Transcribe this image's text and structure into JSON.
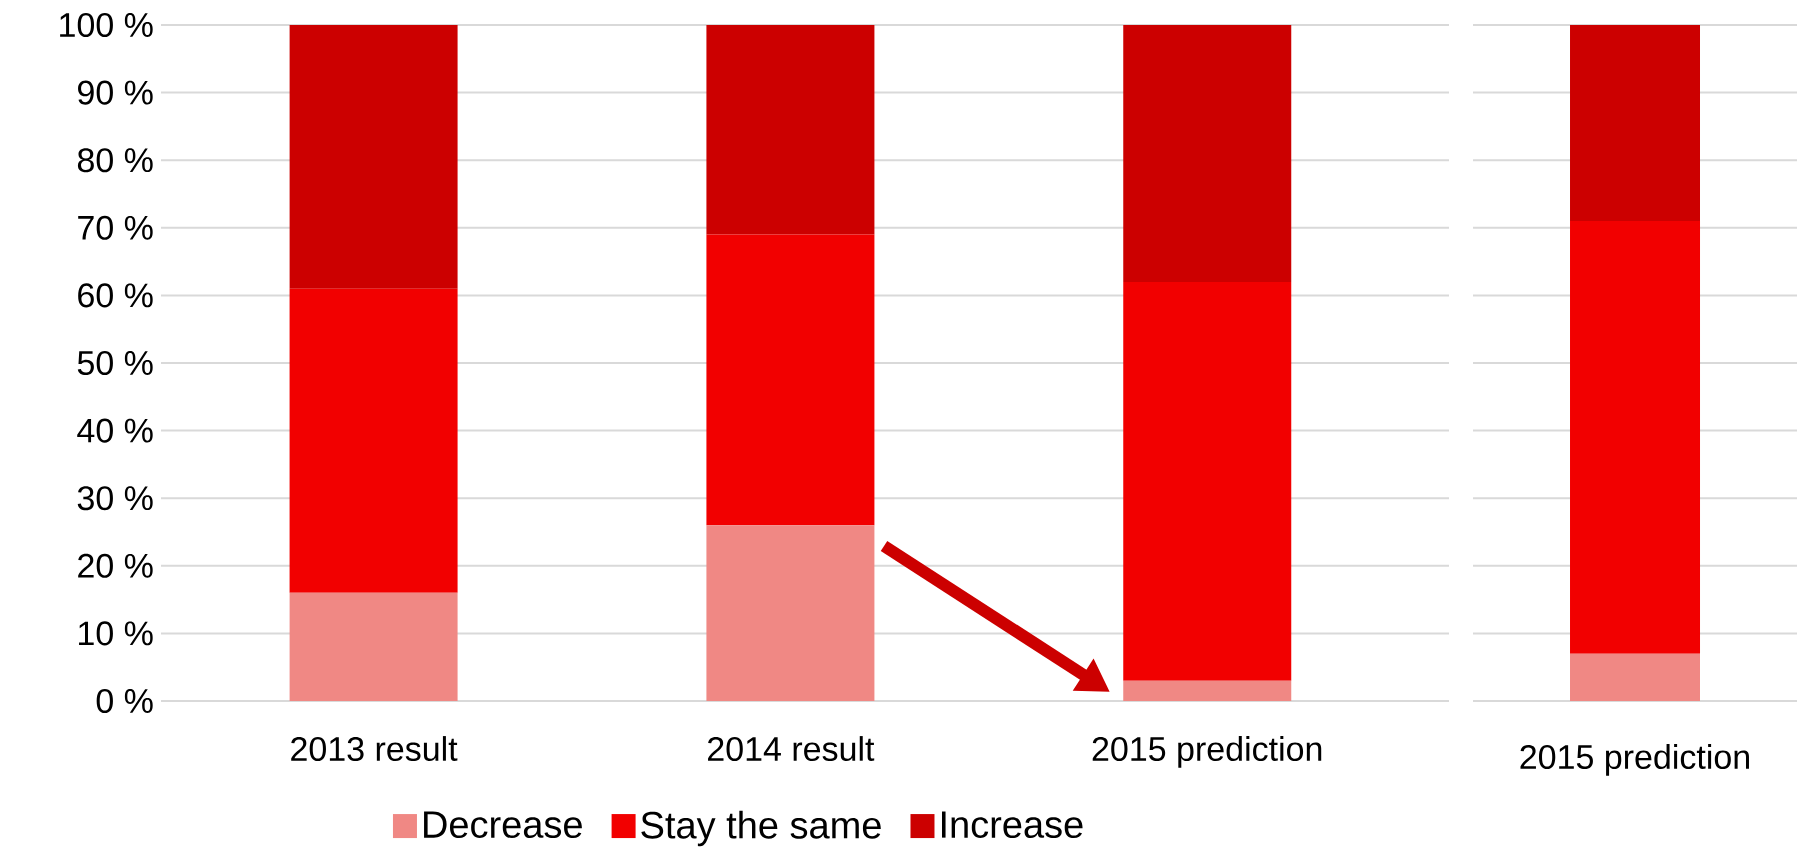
{
  "chart_data": [
    {
      "type": "bar",
      "stacked": true,
      "categories": [
        "2013 result",
        "2014 result",
        "2015 prediction"
      ],
      "series": [
        {
          "name": "Decrease",
          "color": "#f08884",
          "values": [
            16,
            26,
            3
          ]
        },
        {
          "name": "Stay the same",
          "color": "#f20000",
          "values": [
            45,
            43,
            59
          ]
        },
        {
          "name": "Increase",
          "color": "#cc0000",
          "values": [
            39,
            31,
            38
          ]
        }
      ],
      "ylim": [
        0,
        100
      ],
      "yticks": [
        {
          "value": 0,
          "label": "0 %"
        },
        {
          "value": 10,
          "label": "10 %"
        },
        {
          "value": 20,
          "label": "20 %"
        },
        {
          "value": 30,
          "label": "30 %"
        },
        {
          "value": 40,
          "label": "40 %"
        },
        {
          "value": 50,
          "label": "50 %"
        },
        {
          "value": 60,
          "label": "60 %"
        },
        {
          "value": 70,
          "label": "70 %"
        },
        {
          "value": 80,
          "label": "80 %"
        },
        {
          "value": 90,
          "label": "90 %"
        },
        {
          "value": 100,
          "label": "100 %"
        }
      ],
      "grid": "y",
      "legend": "bottom"
    },
    {
      "type": "bar",
      "stacked": true,
      "categories": [
        "2015 prediction"
      ],
      "series": [
        {
          "color": "#f08884",
          "values": [
            7
          ]
        },
        {
          "color": "#f20000",
          "values": [
            64
          ]
        },
        {
          "color": "#cc0000",
          "values": [
            29
          ]
        }
      ],
      "ylim": [
        0,
        100
      ],
      "yticks": [
        0,
        10,
        20,
        30,
        40,
        50,
        60,
        70,
        80,
        90,
        100
      ],
      "grid": "y",
      "tick_labels": "x"
    }
  ]
}
